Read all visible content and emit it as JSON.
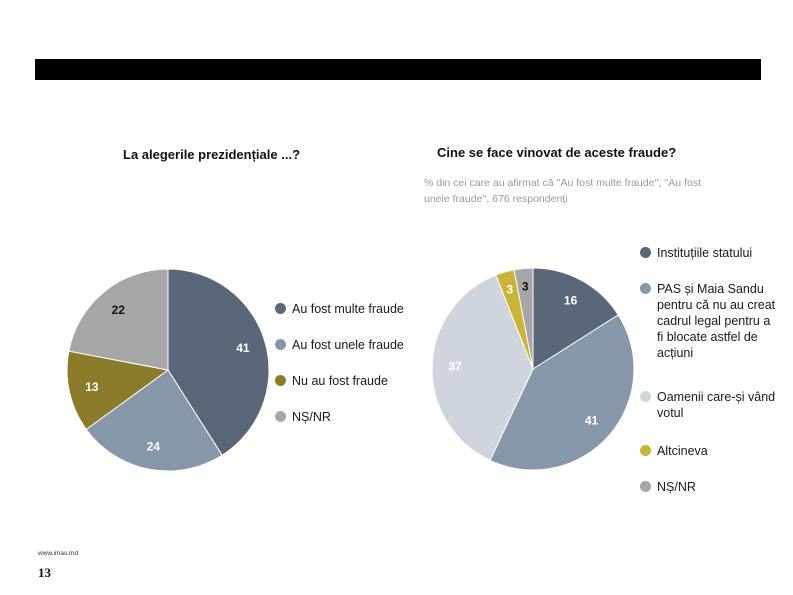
{
  "footer": {
    "url": "www.imas.md",
    "page_number": "13"
  },
  "chart_data": [
    {
      "type": "pie",
      "title": "La alegerile prezidențiale ...?",
      "categories": [
        "Au fost multe fraude",
        "Au fost unele fraude",
        "Nu au fost fraude",
        "NȘ/NR"
      ],
      "values": [
        41,
        24,
        13,
        22
      ],
      "colors": [
        "#5a6778",
        "#8797aa",
        "#8a7c2a",
        "#a6a6a6"
      ],
      "label_colors": [
        "#ffffff",
        "#ffffff",
        "#ffffff",
        "#111111"
      ],
      "legend_position": "right"
    },
    {
      "type": "pie",
      "title": "Cine se face vinovat de aceste fraude?",
      "subtitle": "% din cei care au afirmat că ''Au fost multe fraude'', ''Au fost unele fraude'', 676 respondenți",
      "categories": [
        "Instituțiile statului",
        "PAS și Maia Sandu pentru că nu au creat cadrul legal pentru a fi blocate astfel de acțiuni",
        "Oamenii care-și vând votul",
        "Altcineva",
        "NȘ/NR"
      ],
      "values": [
        16,
        41,
        37,
        3,
        3
      ],
      "colors": [
        "#5a6778",
        "#8797aa",
        "#cfd5dd",
        "#c9b437",
        "#a6a6a6"
      ],
      "label_colors": [
        "#ffffff",
        "#ffffff",
        "#ffffff",
        "#ffffff",
        "#111111"
      ],
      "legend_position": "right"
    }
  ]
}
